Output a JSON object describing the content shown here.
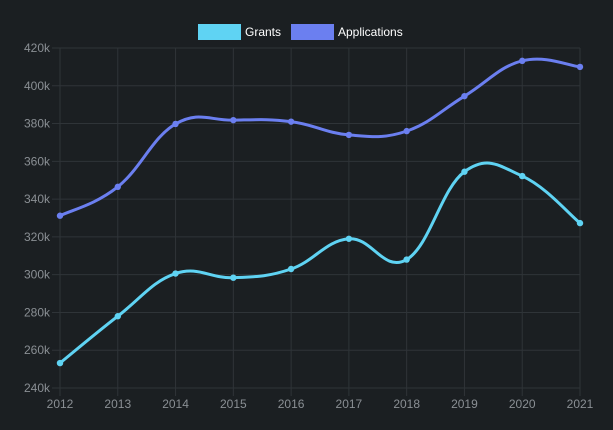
{
  "chart_data": {
    "type": "line",
    "title": "",
    "xlabel": "",
    "ylabel": "",
    "x": [
      "2012",
      "2013",
      "2014",
      "2015",
      "2016",
      "2017",
      "2018",
      "2019",
      "2020",
      "2021"
    ],
    "ylim": [
      240000,
      420000
    ],
    "y_ticks": [
      240000,
      260000,
      280000,
      300000,
      320000,
      340000,
      360000,
      380000,
      400000,
      420000
    ],
    "y_tick_labels": [
      "240k",
      "260k",
      "280k",
      "300k",
      "320k",
      "340k",
      "360k",
      "380k",
      "400k",
      "420k"
    ],
    "grid": true,
    "legend_position": "top-center",
    "series": [
      {
        "name": "Grants",
        "color": "#5fd3f3",
        "values": [
          253200,
          278000,
          300600,
          298400,
          303000,
          319000,
          308000,
          354500,
          352200,
          327300
        ]
      },
      {
        "name": "Applications",
        "color": "#6b7ff0",
        "values": [
          331200,
          346500,
          379800,
          381800,
          381000,
          374000,
          376000,
          394500,
          413200,
          410000
        ]
      }
    ]
  }
}
